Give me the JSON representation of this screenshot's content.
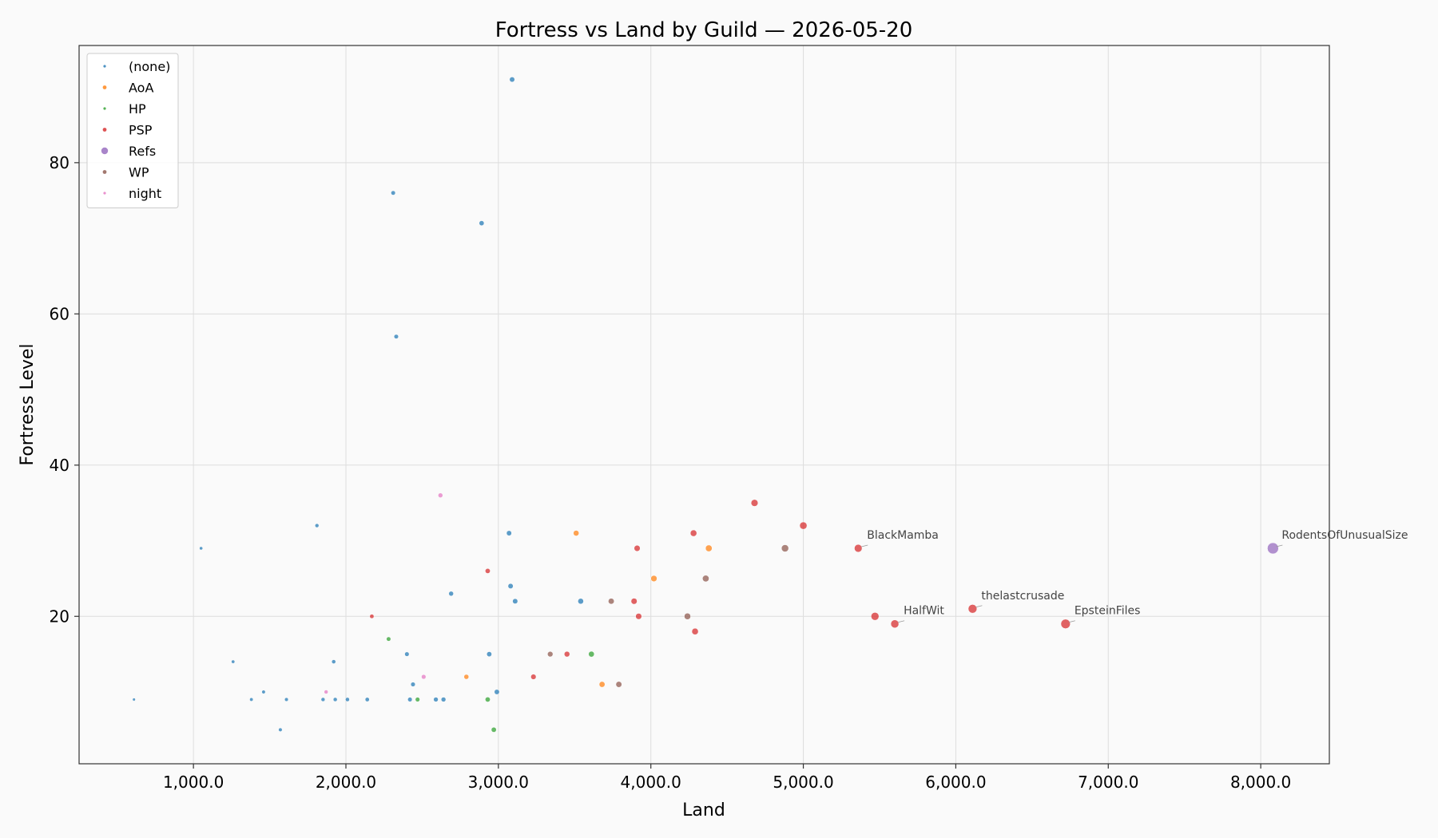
{
  "chart_data": {
    "type": "scatter",
    "title": "Fortress vs Land by Guild — 2026-05-20",
    "xlabel": "Land",
    "ylabel": "Fortress Level",
    "xlim": [
      250,
      8450
    ],
    "ylim": [
      0.5,
      95.5
    ],
    "x_ticks": [
      1000,
      2000,
      3000,
      4000,
      5000,
      6000,
      7000,
      8000
    ],
    "x_tick_labels": [
      "1,000.0",
      "2,000.0",
      "3,000.0",
      "4,000.0",
      "5,000.0",
      "6,000.0",
      "7,000.0",
      "8,000.0"
    ],
    "y_ticks": [
      20,
      40,
      60,
      80
    ],
    "y_tick_labels": [
      "20",
      "40",
      "60",
      "80"
    ],
    "grid": true,
    "legend_position": "upper-left",
    "series": [
      {
        "name": "(none)",
        "color": "#1f77b4",
        "points": [
          [
            610,
            9
          ],
          [
            1050,
            29
          ],
          [
            1260,
            14
          ],
          [
            1380,
            9
          ],
          [
            1460,
            10
          ],
          [
            1570,
            5
          ],
          [
            1610,
            9
          ],
          [
            1810,
            32
          ],
          [
            1850,
            9
          ],
          [
            1920,
            14
          ],
          [
            1930,
            9
          ],
          [
            2010,
            9
          ],
          [
            2140,
            9
          ],
          [
            2310,
            76
          ],
          [
            2330,
            57
          ],
          [
            2400,
            15
          ],
          [
            2420,
            9
          ],
          [
            2440,
            11
          ],
          [
            2590,
            9
          ],
          [
            2640,
            9
          ],
          [
            2690,
            23
          ],
          [
            2890,
            72
          ],
          [
            2940,
            15
          ],
          [
            2990,
            10
          ],
          [
            3070,
            31
          ],
          [
            3080,
            24
          ],
          [
            3090,
            91
          ],
          [
            3110,
            22
          ],
          [
            3540,
            22
          ]
        ]
      },
      {
        "name": "AoA",
        "color": "#ff7f0e",
        "points": [
          [
            2790,
            12
          ],
          [
            3510,
            31
          ],
          [
            3680,
            11
          ],
          [
            4020,
            25
          ],
          [
            4380,
            29
          ]
        ]
      },
      {
        "name": "HP",
        "color": "#2ca02c",
        "points": [
          [
            2280,
            17
          ],
          [
            2470,
            9
          ],
          [
            2930,
            9
          ],
          [
            2970,
            5
          ],
          [
            3610,
            15
          ]
        ]
      },
      {
        "name": "PSP",
        "color": "#d62728",
        "points": [
          [
            2170,
            20
          ],
          [
            2930,
            26
          ],
          [
            3230,
            12
          ],
          [
            3450,
            15
          ],
          [
            3890,
            22
          ],
          [
            3910,
            29
          ],
          [
            3920,
            20
          ],
          [
            4280,
            31
          ],
          [
            4290,
            18
          ],
          [
            4680,
            35
          ],
          [
            5000,
            32
          ],
          [
            5360,
            29
          ],
          [
            5470,
            20
          ],
          [
            5600,
            19
          ],
          [
            6110,
            21
          ],
          [
            6720,
            19
          ]
        ]
      },
      {
        "name": "Refs",
        "color": "#9467bd",
        "points": [
          [
            8080,
            29
          ]
        ]
      },
      {
        "name": "WP",
        "color": "#8c564b",
        "points": [
          [
            3340,
            15
          ],
          [
            3740,
            22
          ],
          [
            3790,
            11
          ],
          [
            4240,
            20
          ],
          [
            4360,
            25
          ],
          [
            4880,
            29
          ]
        ]
      },
      {
        "name": "night",
        "color": "#e377c2",
        "points": [
          [
            1870,
            10
          ],
          [
            2510,
            12
          ],
          [
            2620,
            36
          ]
        ]
      }
    ],
    "annotations": [
      {
        "text": "BlackMamba",
        "x": 5360,
        "y": 29
      },
      {
        "text": "HalfWit",
        "x": 5600,
        "y": 19
      },
      {
        "text": "thelastcrusade",
        "x": 6110,
        "y": 21
      },
      {
        "text": "EpsteinFiles",
        "x": 6720,
        "y": 19
      },
      {
        "text": "RodentsOfUnusualSize",
        "x": 8080,
        "y": 29
      }
    ]
  }
}
